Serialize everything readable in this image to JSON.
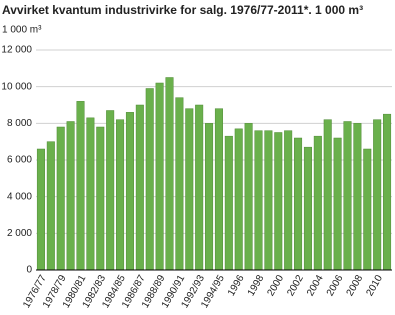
{
  "chart_data": {
    "type": "bar",
    "title": "Avvirket kvantum industrivirke for salg. 1976/77-2011*. 1 000 m³",
    "y_label": "1 000 m³",
    "categories": [
      "1976/77",
      null,
      "1978/79",
      null,
      "1980/81",
      null,
      "1982/83",
      null,
      "1984/85",
      null,
      "1986/87",
      null,
      "1988/89",
      null,
      "1990/91",
      null,
      "1992/93",
      null,
      "1994/95",
      null,
      "1996",
      null,
      "1998",
      null,
      "2000",
      null,
      "2002",
      null,
      "2004",
      null,
      "2006",
      null,
      "2008",
      null,
      "2010",
      null
    ],
    "values": [
      6600,
      7000,
      7800,
      8100,
      9200,
      8300,
      7800,
      8700,
      8200,
      8600,
      9000,
      9900,
      10200,
      10500,
      9400,
      8800,
      9000,
      8000,
      8800,
      7300,
      7700,
      8000,
      7600,
      7600,
      7500,
      7600,
      7200,
      6700,
      7300,
      8200,
      7200,
      8100,
      8000,
      6600,
      8200,
      8500
    ],
    "color": "#6ab04c",
    "ylim": [
      0,
      12000
    ],
    "yticks": [
      0,
      {
        "value": 2000,
        "label": "2 000"
      },
      {
        "value": 4000,
        "label": "4 000"
      },
      {
        "value": 6000,
        "label": "6 000"
      },
      {
        "value": 8000,
        "label": "8 000"
      },
      {
        "value": 10000,
        "label": "10 000"
      },
      {
        "value": 12000,
        "label": "12 000"
      }
    ],
    "grid": true
  }
}
